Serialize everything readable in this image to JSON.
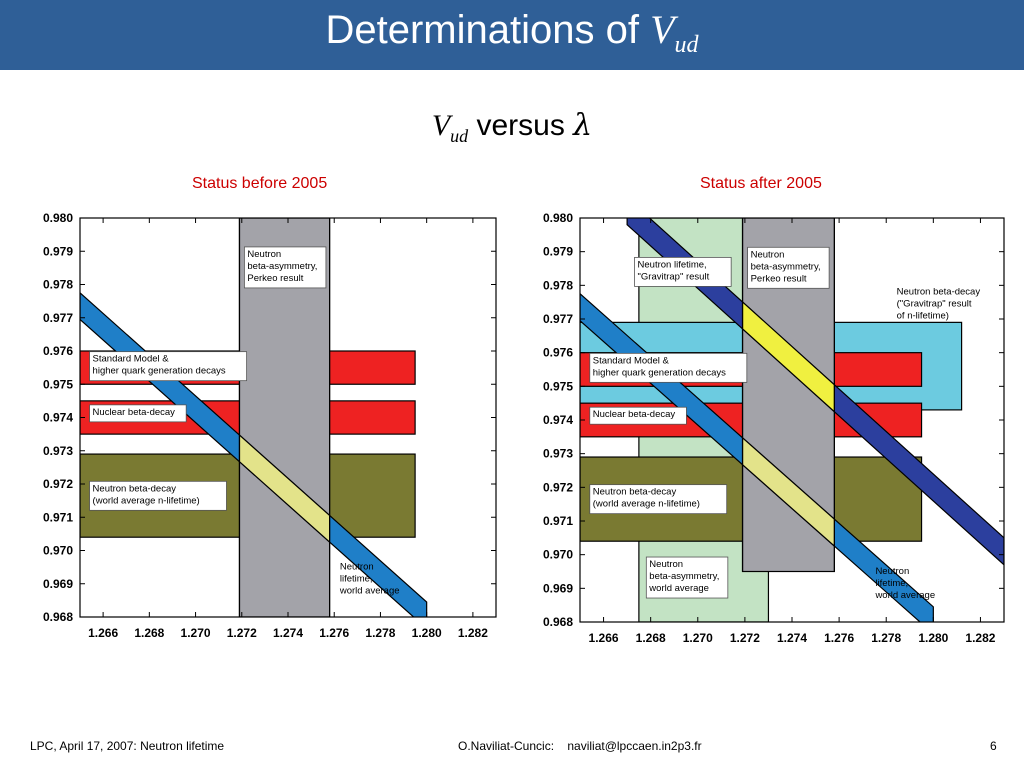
{
  "header": {
    "title_text": "Determinations of ",
    "title_var": "V",
    "title_sub": "ud"
  },
  "subtitle": {
    "var": "V",
    "sub": "ud",
    "text": " versus ",
    "lambda": "λ"
  },
  "footer": {
    "left": "LPC, April 17, 2007: Neutron lifetime",
    "center": "O.Naviliat-Cuncic:    naviliat@lpccaen.in2p3.fr",
    "page": "6"
  },
  "colors": {
    "title_bar": "#2f5f97",
    "panel_title": "#cc0000",
    "red_band": "#ee2222",
    "olive_band": "#7a7a32",
    "gray_band": "#a3a3a9",
    "light_green": "#c3e3c4",
    "cyan_band": "#6ccbe0",
    "blue_diag": "#1f7fc8",
    "yellow_light": "#e3e38a",
    "yellow_bright": "#f0f040",
    "navy_diag": "#2c3f9e"
  },
  "chart_data": [
    {
      "type": "area",
      "panel_title": "Status before 2005",
      "xlim": [
        1.265,
        1.283
      ],
      "ylim": [
        0.968,
        0.98
      ],
      "xticks": [
        "1.266",
        "1.268",
        "1.270",
        "1.272",
        "1.274",
        "1.276",
        "1.278",
        "1.280",
        "1.282"
      ],
      "yticks": [
        "0.968",
        "0.969",
        "0.970",
        "0.971",
        "0.972",
        "0.973",
        "0.974",
        "0.975",
        "0.976",
        "0.977",
        "0.978",
        "0.979",
        "0.980"
      ],
      "bands": [
        {
          "name": "Standard Model & higher quark generation decays",
          "orientation": "horizontal",
          "y": [
            0.975,
            0.976
          ],
          "x": [
            1.265,
            1.2795
          ],
          "color": "#ee2222"
        },
        {
          "name": "Nuclear beta-decay",
          "orientation": "horizontal",
          "y": [
            0.9735,
            0.9745
          ],
          "x": [
            1.265,
            1.2795
          ],
          "color": "#ee2222"
        },
        {
          "name": "Neutron beta-decay (world average n-lifetime)",
          "orientation": "horizontal",
          "y": [
            0.9704,
            0.9729
          ],
          "x": [
            1.265,
            1.2795
          ],
          "color": "#7a7a32"
        },
        {
          "name": "Neutron beta-asymmetry, Perkeo result",
          "orientation": "vertical",
          "x": [
            1.2719,
            1.2758
          ],
          "y": [
            0.968,
            0.98
          ],
          "color": "#a3a3a9"
        }
      ],
      "diagonals": [
        {
          "name": "Neutron lifetime, world average",
          "x1": 1.265,
          "y1c": 0.97735,
          "x2": 1.28,
          "y2c": 0.96805,
          "width": 0.0008,
          "color": "#1f7fc8",
          "highlight": "#e3e38a",
          "highlight_x": [
            1.2719,
            1.2758
          ]
        }
      ],
      "annotations": [
        {
          "text": [
            "Neutron",
            "beta-asymmetry,",
            "Perkeo result"
          ],
          "x": 1.2722,
          "y": 0.9791,
          "box": true
        },
        {
          "text": [
            "Standard Model &",
            "higher quark generation decays"
          ],
          "x": 1.2655,
          "y": 0.97595,
          "box": true
        },
        {
          "text": [
            "Nuclear beta-decay"
          ],
          "x": 1.2655,
          "y": 0.97435,
          "box": true
        },
        {
          "text": [
            "Neutron beta-decay",
            "(world average n-lifetime)"
          ],
          "x": 1.2655,
          "y": 0.97205,
          "box": true
        },
        {
          "text": [
            "Neutron",
            "lifetime,",
            "world average"
          ],
          "x": 1.2762,
          "y": 0.9697,
          "box": false
        }
      ]
    },
    {
      "type": "area",
      "panel_title": "Status after 2005",
      "xlim": [
        1.265,
        1.283
      ],
      "ylim": [
        0.968,
        0.98
      ],
      "xticks": [
        "1.266",
        "1.268",
        "1.270",
        "1.272",
        "1.274",
        "1.276",
        "1.278",
        "1.280",
        "1.282"
      ],
      "yticks": [
        "0.968",
        "0.969",
        "0.970",
        "0.971",
        "0.972",
        "0.973",
        "0.974",
        "0.975",
        "0.976",
        "0.977",
        "0.978",
        "0.979",
        "0.980"
      ],
      "bands": [
        {
          "name": "Neutron beta-asymmetry, world average",
          "orientation": "vertical",
          "x": [
            1.2675,
            1.273
          ],
          "y": [
            0.968,
            0.98
          ],
          "color": "#c3e3c4"
        },
        {
          "name": "Neutron beta-decay (\"Gravitrap\" result of n-lifetime)",
          "orientation": "horizontal",
          "y": [
            0.9743,
            0.9769
          ],
          "x": [
            1.265,
            1.2812
          ],
          "color": "#6ccbe0"
        },
        {
          "name": "Standard Model & higher quark generation decays",
          "orientation": "horizontal",
          "y": [
            0.975,
            0.976
          ],
          "x": [
            1.265,
            1.2795
          ],
          "color": "#ee2222"
        },
        {
          "name": "Nuclear beta-decay",
          "orientation": "horizontal",
          "y": [
            0.9735,
            0.9745
          ],
          "x": [
            1.265,
            1.2795
          ],
          "color": "#ee2222"
        },
        {
          "name": "Neutron beta-decay (world average n-lifetime)",
          "orientation": "horizontal",
          "y": [
            0.9704,
            0.9729
          ],
          "x": [
            1.265,
            1.2795
          ],
          "color": "#7a7a32"
        },
        {
          "name": "Neutron beta-asymmetry, Perkeo result",
          "orientation": "vertical",
          "x": [
            1.2719,
            1.2758
          ],
          "y": [
            0.9695,
            0.98
          ],
          "color": "#a3a3a9"
        }
      ],
      "diagonals": [
        {
          "name": "Neutron lifetime, world average",
          "x1": 1.265,
          "y1c": 0.97735,
          "x2": 1.28,
          "y2c": 0.96805,
          "width": 0.0008,
          "color": "#1f7fc8",
          "highlight": "#e3e38a",
          "highlight_x": [
            1.2719,
            1.2758
          ]
        },
        {
          "name": "Neutron lifetime, \"Gravitrap\" result",
          "x1": 1.267,
          "y1c": 0.9802,
          "x2": 1.283,
          "y2c": 0.9701,
          "width": 0.0008,
          "color": "#2c3f9e",
          "highlight": "#f0f040",
          "highlight_x": [
            1.2719,
            1.2758
          ]
        }
      ],
      "annotations": [
        {
          "text": [
            "Neutron lifetime,",
            "\"Gravitrap\" result"
          ],
          "x": 1.2674,
          "y": 0.9788,
          "box": true
        },
        {
          "text": [
            "Neutron",
            "beta-asymmetry,",
            "Perkeo result"
          ],
          "x": 1.2722,
          "y": 0.9791,
          "box": true
        },
        {
          "text": [
            "Neutron beta-decay",
            "(\"Gravitrap\" result",
            "  of n-lifetime)"
          ],
          "x": 1.2784,
          "y": 0.978,
          "box": false
        },
        {
          "text": [
            "Standard Model &",
            "higher quark generation decays"
          ],
          "x": 1.2655,
          "y": 0.97595,
          "box": true
        },
        {
          "text": [
            "Nuclear beta-decay"
          ],
          "x": 1.2655,
          "y": 0.97435,
          "box": true
        },
        {
          "text": [
            "Neutron beta-decay",
            "(world average n-lifetime)"
          ],
          "x": 1.2655,
          "y": 0.97205,
          "box": true
        },
        {
          "text": [
            "Neutron",
            "beta-asymmetry,",
            "world average"
          ],
          "x": 1.2679,
          "y": 0.9699,
          "box": true
        },
        {
          "text": [
            "Neutron",
            "lifetime,",
            "world average"
          ],
          "x": 1.2775,
          "y": 0.9697,
          "box": false
        }
      ]
    }
  ]
}
